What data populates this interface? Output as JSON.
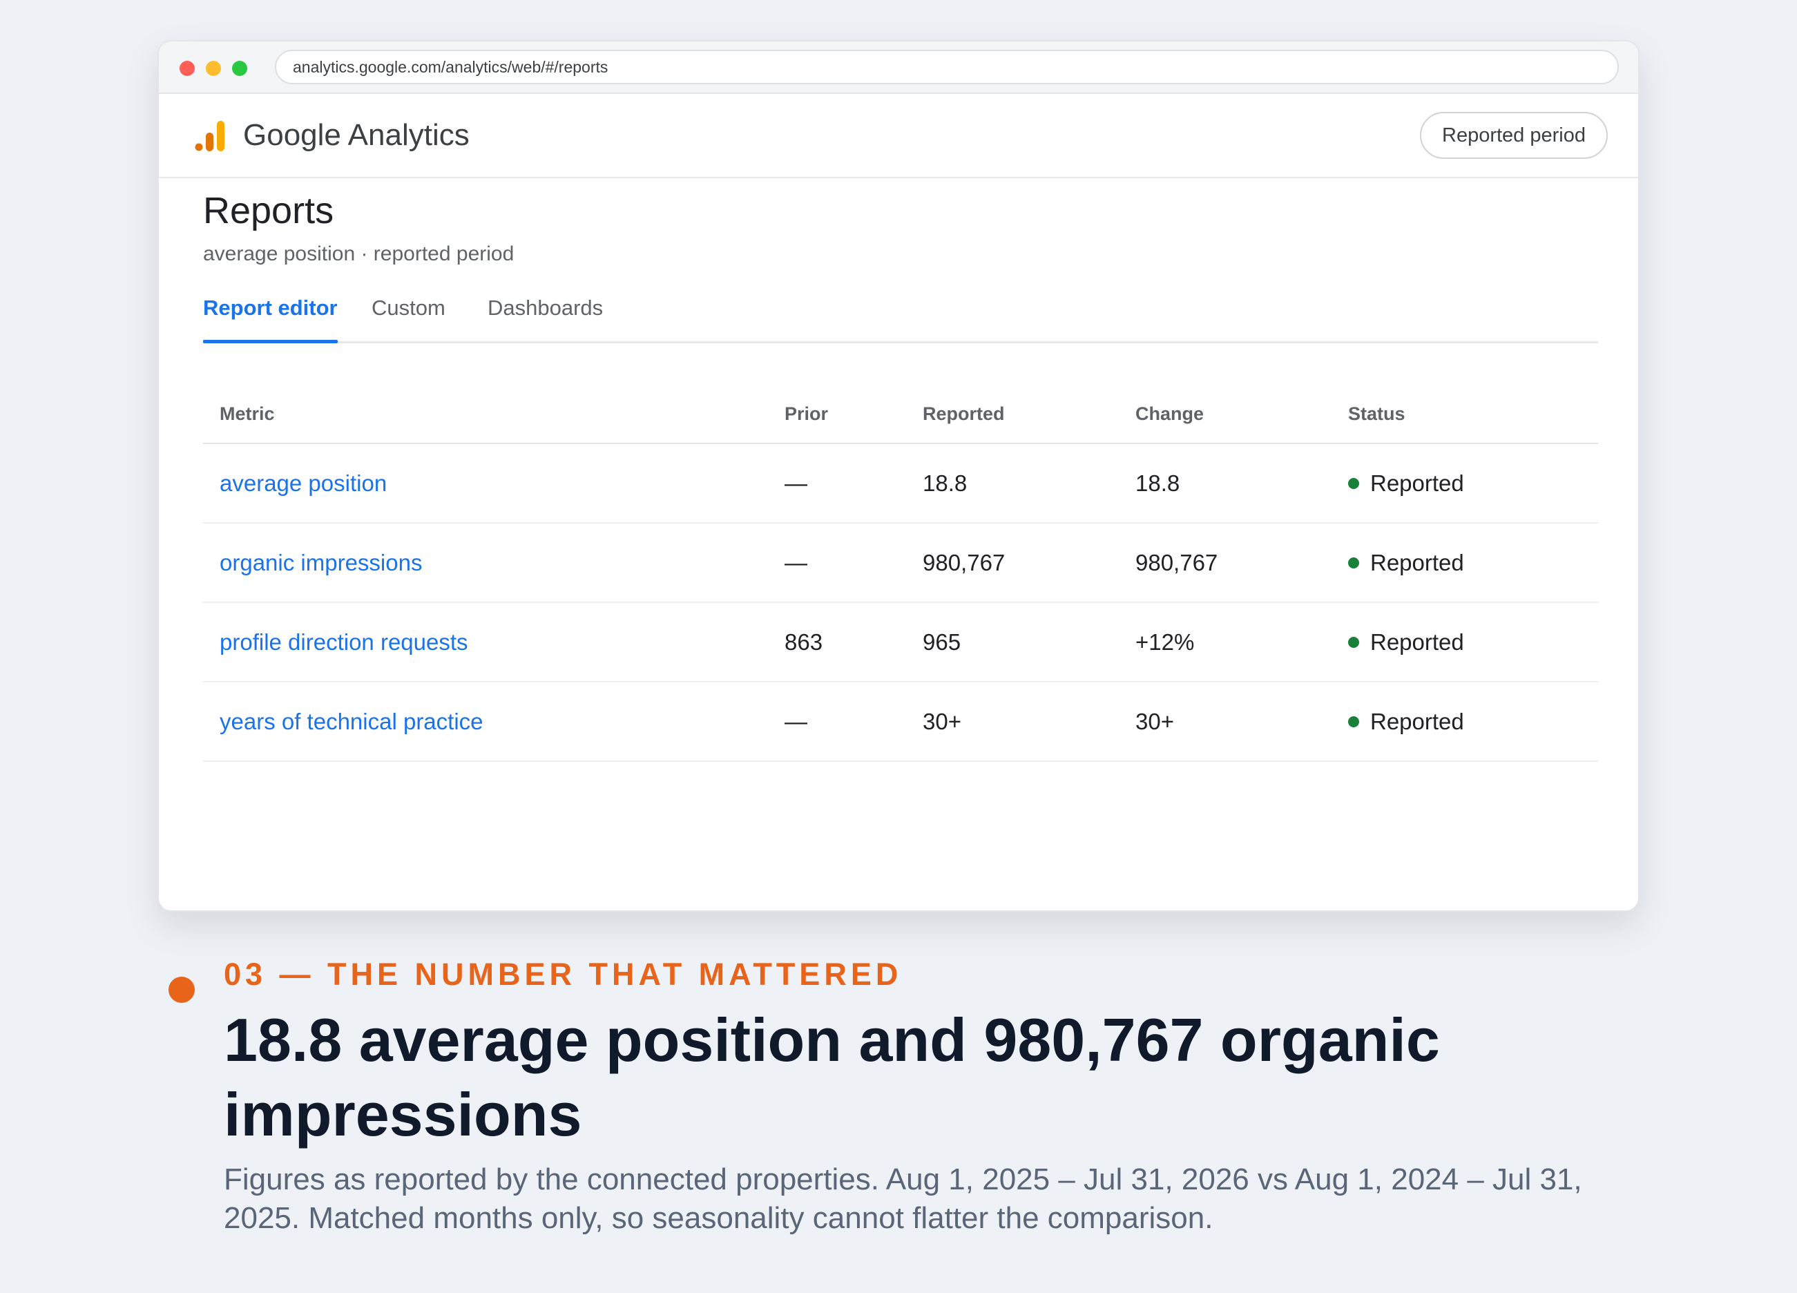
{
  "browser": {
    "url": "analytics.google.com/analytics/web/#/reports"
  },
  "app": {
    "title": "Google Analytics",
    "period_button": "Reported period",
    "logo_colors": [
      "#e37400",
      "#f9ab00"
    ]
  },
  "page": {
    "title": "Reports",
    "subtitle": "average position · reported period"
  },
  "tabs": [
    {
      "label": "Report editor",
      "active": true
    },
    {
      "label": "Custom",
      "active": false
    },
    {
      "label": "Dashboards",
      "active": false
    }
  ],
  "table": {
    "headers": [
      "Metric",
      "Prior",
      "Reported",
      "Change",
      "Status"
    ],
    "rows": [
      {
        "metric": "average position",
        "prior": "—",
        "reported": "18.8",
        "change": "18.8",
        "status": "Reported"
      },
      {
        "metric": "organic impressions",
        "prior": "—",
        "reported": "980,767",
        "change": "980,767",
        "status": "Reported"
      },
      {
        "metric": "profile direction requests",
        "prior": "863",
        "reported": "965",
        "change": "+12%",
        "status": "Reported"
      },
      {
        "metric": "years of technical practice",
        "prior": "—",
        "reported": "30+",
        "change": "30+",
        "status": "Reported"
      }
    ]
  },
  "caption": {
    "eyebrow": "03 — THE NUMBER THAT MATTERED",
    "headline": "18.8 average position and 980,767 organic impressions",
    "description": "Figures as reported by the connected properties. Aug 1, 2025 – Jul 31, 2026 vs Aug 1, 2024 – Jul 31, 2025. Matched months only, so seasonality cannot flatter the comparison."
  },
  "colors": {
    "accent": "#1a73e8",
    "status_green": "#188038",
    "caption_orange": "#e8641b",
    "headline": "#111a2b"
  }
}
